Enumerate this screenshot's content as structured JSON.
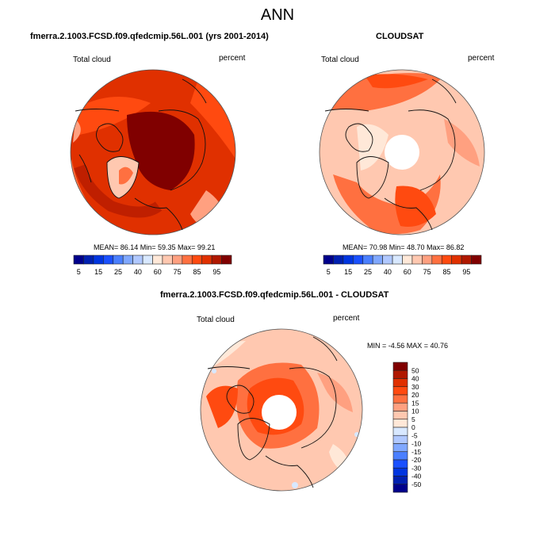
{
  "figure": {
    "title": "ANN"
  },
  "panels": [
    {
      "title": "fmerra.2.1003.FCSD.f09.qfedcmip.56L.001 (yrs 2001-2014)",
      "left_label": "Total cloud",
      "right_label": "percent",
      "stats": "MEAN=  86.14  Min=  59.35  Max=  99.21",
      "projection": "north polar stereographic",
      "has_pole_hole": false
    },
    {
      "title": "CLOUDSAT",
      "left_label": "Total cloud",
      "right_label": "percent",
      "stats": "MEAN=  70.98  Min=  48.70  Max=  86.82",
      "projection": "north polar stereographic",
      "has_pole_hole": true
    },
    {
      "title": "fmerra.2.1003.FCSD.f09.qfedcmip.56L.001 - CLOUDSAT",
      "left_label": "Total cloud",
      "right_label": "percent",
      "stats": "MIN =  -4.56 MAX =  40.76",
      "projection": "north polar stereographic",
      "has_pole_hole": true
    }
  ],
  "colorbars": {
    "absolute": {
      "orientation": "horizontal",
      "labels": [
        "5",
        "15",
        "25",
        "40",
        "60",
        "75",
        "85",
        "95"
      ],
      "colors": [
        "#00008b",
        "#0020b0",
        "#0035e0",
        "#1a50ff",
        "#4a7fff",
        "#80a8ff",
        "#b0c8ff",
        "#d8e8ff",
        "#ffe8d8",
        "#ffc8b0",
        "#ffa080",
        "#ff7040",
        "#ff4a10",
        "#e03000",
        "#b01800",
        "#800000"
      ]
    },
    "difference": {
      "orientation": "vertical",
      "labels": [
        "50",
        "40",
        "30",
        "20",
        "15",
        "10",
        "5",
        "0",
        "-5",
        "-10",
        "-15",
        "-20",
        "-30",
        "-40",
        "-50"
      ],
      "colors": [
        "#800000",
        "#b01800",
        "#e03000",
        "#ff4a10",
        "#ff7040",
        "#ffa080",
        "#ffc8b0",
        "#ffe8d8",
        "#d8e8ff",
        "#b0c8ff",
        "#80a8ff",
        "#4a7fff",
        "#1a50ff",
        "#0035e0",
        "#0020b0",
        "#00008b"
      ]
    }
  },
  "chart_data": [
    {
      "type": "heatmap",
      "title": "fmerra.2.1003.FCSD.f09.qfedcmip.56L.001 (yrs 2001-2014)",
      "variable": "Total cloud",
      "units": "percent",
      "season": "ANN",
      "mean": 86.14,
      "min": 59.35,
      "max": 99.21,
      "contour_levels": [
        5,
        10,
        15,
        20,
        25,
        30,
        40,
        50,
        60,
        70,
        75,
        80,
        85,
        90,
        95
      ]
    },
    {
      "type": "heatmap",
      "title": "CLOUDSAT",
      "variable": "Total cloud",
      "units": "percent",
      "season": "ANN",
      "mean": 70.98,
      "min": 48.7,
      "max": 86.82,
      "contour_levels": [
        5,
        10,
        15,
        20,
        25,
        30,
        40,
        50,
        60,
        70,
        75,
        80,
        85,
        90,
        95
      ]
    },
    {
      "type": "heatmap",
      "title": "fmerra.2.1003.FCSD.f09.qfedcmip.56L.001 - CLOUDSAT",
      "variable": "Total cloud",
      "units": "percent",
      "season": "ANN",
      "min": -4.56,
      "max": 40.76,
      "contour_levels": [
        -50,
        -40,
        -30,
        -20,
        -15,
        -10,
        -5,
        0,
        5,
        10,
        15,
        20,
        30,
        40,
        50
      ]
    }
  ]
}
